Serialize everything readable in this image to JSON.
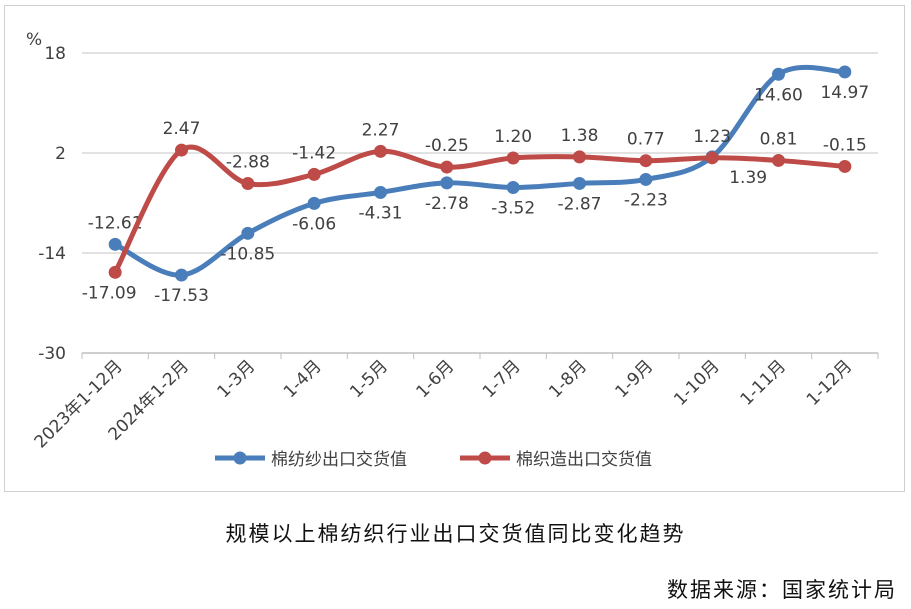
{
  "chart_data": {
    "type": "line",
    "title": "规模以上棉纺织行业出口交货值同比变化趋势",
    "source": "数据来源：国家统计局",
    "ylabel": "%",
    "ylim": [
      -30,
      18
    ],
    "yticks": [
      18,
      2,
      -14,
      -30
    ],
    "grid": true,
    "legend": "bottom",
    "categories": [
      "2023年1-12月",
      "2024年1-2月",
      "1-3月",
      "1-4月",
      "1-5月",
      "1-6月",
      "1-7月",
      "1-8月",
      "1-9月",
      "1-10月",
      "1-11月",
      "1-12月"
    ],
    "series": [
      {
        "name": "棉纺纱出口交货值",
        "color": "#4a7ebb",
        "values": [
          -12.61,
          -17.53,
          -10.85,
          -6.06,
          -4.31,
          -2.78,
          -3.52,
          -2.87,
          -2.23,
          1.39,
          14.6,
          14.97
        ]
      },
      {
        "name": "棉织造出口交货值",
        "color": "#be4b48",
        "values": [
          -17.09,
          2.47,
          -2.88,
          -1.42,
          2.27,
          -0.25,
          1.2,
          1.38,
          0.77,
          1.23,
          0.81,
          -0.15
        ]
      }
    ]
  }
}
